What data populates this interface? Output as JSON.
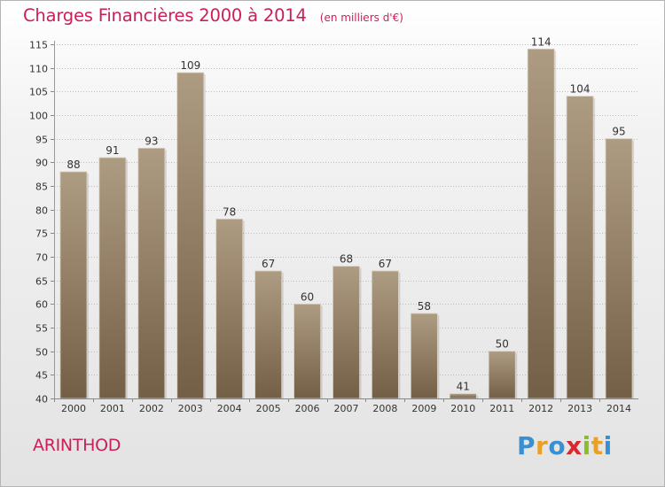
{
  "header": {
    "title": "Charges Financières 2000 à 2014",
    "subtitle": "(en milliers d'€)"
  },
  "footer": {
    "commune": "ARINTHOD",
    "logo": {
      "letters": [
        "P",
        "r",
        "o",
        "x",
        "i",
        "t",
        "i"
      ],
      "colors": [
        "#3a8fd1",
        "#e8a126",
        "#3a8fd1",
        "#d9282f",
        "#8cbc2a",
        "#e8a126",
        "#3a8fd1"
      ]
    }
  },
  "colors": {
    "title": "#cc1f57",
    "bar_light": "#ac9a80",
    "bar_dark": "#766248",
    "grid": "#bdbdbd",
    "axis_text": "#333333"
  },
  "chart_data": {
    "type": "bar",
    "title": "Charges Financières 2000 à 2014",
    "subtitle": "(en milliers d'€)",
    "categories": [
      "2000",
      "2001",
      "2002",
      "2003",
      "2004",
      "2005",
      "2006",
      "2007",
      "2008",
      "2009",
      "2010",
      "2011",
      "2012",
      "2013",
      "2014"
    ],
    "values": [
      88,
      91,
      93,
      109,
      78,
      67,
      60,
      68,
      67,
      58,
      41,
      50,
      114,
      104,
      95
    ],
    "ylim": [
      40,
      115
    ],
    "yticks": [
      40,
      45,
      50,
      55,
      60,
      65,
      70,
      75,
      80,
      85,
      90,
      95,
      100,
      105,
      110,
      115
    ],
    "grid": true,
    "data_labels": true
  }
}
